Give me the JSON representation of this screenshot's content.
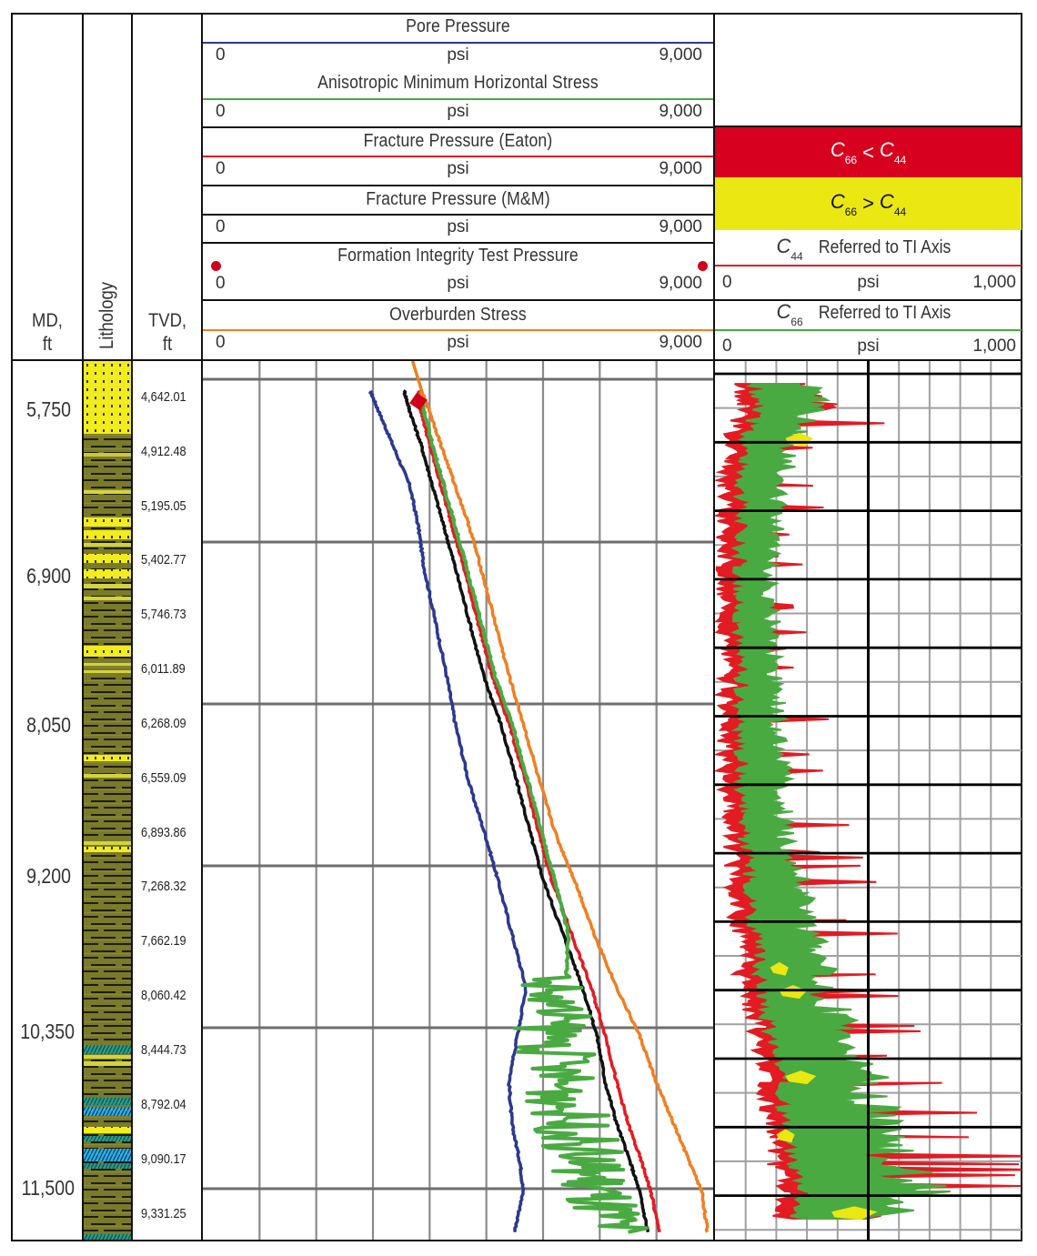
{
  "header": {
    "md_label": [
      "MD,",
      "ft"
    ],
    "lithology_label": "Lithology",
    "tvd_label": [
      "TVD,",
      "ft"
    ],
    "main_track_curves": [
      {
        "name": "Pore Pressure",
        "min": "0",
        "unit": "psi",
        "max": "9,000",
        "color": "#2b3990"
      },
      {
        "name": "Anisotropic Minimum Horizontal Stress",
        "min": "0",
        "unit": "psi",
        "max": "9,000",
        "color": "#4aaa42"
      },
      {
        "name": "Fracture Pressure (Eaton)",
        "min": "0",
        "unit": "psi",
        "max": "9,000",
        "color": "#e31b23"
      },
      {
        "name": "Fracture Pressure (M&M)",
        "min": "0",
        "unit": "psi",
        "max": "9,000",
        "color": "#111111"
      },
      {
        "name": "Formation Integrity Test Pressure",
        "min": "0",
        "unit": "psi",
        "max": "9,000",
        "color": "#d0021b",
        "marker": "dot"
      },
      {
        "name": "Overburden Stress",
        "min": "0",
        "unit": "psi",
        "max": "9,000",
        "color": "#f07f22"
      }
    ],
    "right_track": {
      "legend": [
        {
          "c1": "C",
          "s1": "66",
          "op": "<",
          "c2": "C",
          "s2": "44",
          "fill": "#d7001e",
          "text_color": "#ffffff"
        },
        {
          "c1": "C",
          "s1": "66",
          "op": ">",
          "c2": "C",
          "s2": "44",
          "fill": "#ebe712",
          "text_color": "#111111"
        }
      ],
      "curves": [
        {
          "coef": "C",
          "sub": "44",
          "name": "Referred to TI Axis",
          "min": "0",
          "unit": "psi",
          "max": "1,000",
          "color": "#e31b23"
        },
        {
          "coef": "C",
          "sub": "66",
          "name": "Referred to TI Axis",
          "min": "0",
          "unit": "psi",
          "max": "1,000",
          "color": "#4aaa42"
        }
      ]
    }
  },
  "md_ticks": [
    "5,750",
    "6,900",
    "8,050",
    "9,200",
    "10,350",
    "11,500"
  ],
  "tvd_ticks": [
    "4,642.01",
    "4,912.48",
    "5,195.05",
    "5,402.77",
    "5,746.73",
    "6,011.89",
    "6,268.09",
    "6,559.09",
    "6,893.86",
    "7,268.32",
    "7,662.19",
    "8,060.42",
    "8,444.73",
    "8,792.04",
    "9,090.17",
    "9,331.25"
  ],
  "colors": {
    "shale": "#7a7a2a",
    "sand": "#f2ec1c",
    "limestone_teal": "#2a9d8f",
    "limestone_blue": "#2fb3e6",
    "grid": "#8a8a8a"
  },
  "chart_data": [
    {
      "type": "line",
      "title": "Geomechanics pressure/stress profile",
      "xlabel": "psi",
      "ylabel": "MD, ft",
      "xlim": [
        0,
        9000
      ],
      "ylim": [
        5450,
        11900
      ],
      "y_inverted": true,
      "grid": true,
      "depth_md": [
        5600,
        5750,
        6000,
        6300,
        6600,
        6900,
        7300,
        7700,
        8050,
        8500,
        8900,
        9200,
        9600,
        10000,
        10350,
        10700,
        11000,
        11300,
        11500,
        11800
      ],
      "series": [
        {
          "name": "Pore Pressure",
          "color": "#2b3990",
          "values": [
            2950,
            3100,
            3350,
            3650,
            3800,
            3900,
            4100,
            4300,
            4450,
            4700,
            5000,
            5200,
            5450,
            5700,
            5550,
            5400,
            5450,
            5600,
            5650,
            5500
          ]
        },
        {
          "name": "Fracture Pressure (M&M)",
          "color": "#111111",
          "values": [
            3550,
            3650,
            3850,
            4050,
            4250,
            4450,
            4700,
            4950,
            5250,
            5550,
            5800,
            6000,
            6350,
            6700,
            6950,
            7100,
            7300,
            7550,
            7700,
            7850
          ]
        },
        {
          "name": "Fracture Pressure (Eaton)",
          "color": "#e31b23",
          "values": [
            3800,
            3850,
            4000,
            4200,
            4400,
            4600,
            4850,
            5100,
            5400,
            5700,
            5950,
            6150,
            6500,
            6850,
            7100,
            7300,
            7500,
            7750,
            7900,
            8050
          ]
        },
        {
          "name": "Anisotropic Minimum Horizontal Stress",
          "color": "#4aaa42",
          "values": [
            3850,
            3900,
            4050,
            4250,
            4450,
            4650,
            4900,
            5150,
            5450,
            5750,
            6000,
            6200,
            6450,
            6400,
            6500,
            6600,
            6800,
            7100,
            7200,
            7500
          ]
        },
        {
          "name": "Overburden Stress",
          "color": "#f07f22",
          "values": [
            3850,
            4000,
            4200,
            4450,
            4700,
            4900,
            5150,
            5400,
            5650,
            5950,
            6250,
            6550,
            6900,
            7300,
            7700,
            8000,
            8300,
            8600,
            8800,
            8900
          ]
        },
        {
          "name": "Formation Integrity Test Pressure",
          "color": "#d0021b",
          "type": "scatter",
          "x": [
            3800
          ],
          "y": [
            5680
          ]
        }
      ]
    },
    {
      "type": "area",
      "title": "C44 / C66 referred to TI axis",
      "xlabel": "psi",
      "xlim": [
        0,
        1000
      ],
      "ylim": [
        5450,
        11900
      ],
      "y_inverted": true,
      "grid": true,
      "depth_md": [
        5550,
        5700,
        5900,
        6100,
        6300,
        6500,
        6700,
        6900,
        7100,
        7300,
        7500,
        7700,
        7900,
        8100,
        8300,
        8500,
        8700,
        8900,
        9100,
        9300,
        9500,
        9700,
        9900,
        10100,
        10300,
        10500,
        10700,
        10900,
        11100,
        11300,
        11500,
        11700
      ],
      "series": [
        {
          "name": "C44 Referred to TI Axis",
          "color": "#e31b23",
          "values": [
            270,
            350,
            180,
            150,
            130,
            140,
            120,
            110,
            120,
            140,
            130,
            120,
            150,
            160,
            150,
            170,
            160,
            180,
            200,
            220,
            210,
            250,
            230,
            260,
            270,
            300,
            350,
            320,
            380,
            420,
            500,
            450
          ]
        },
        {
          "name": "C66 Referred to TI Axis",
          "color": "#4aaa42",
          "values": [
            250,
            260,
            210,
            190,
            170,
            165,
            160,
            150,
            145,
            150,
            150,
            155,
            160,
            165,
            170,
            175,
            180,
            190,
            210,
            230,
            240,
            260,
            280,
            300,
            330,
            380,
            400,
            420,
            450,
            480,
            550,
            480
          ]
        }
      ],
      "fill_legend": [
        {
          "label": "C66 < C44",
          "color": "#d7001e"
        },
        {
          "label": "C66 > C44",
          "color": "#ebe712"
        }
      ]
    }
  ]
}
